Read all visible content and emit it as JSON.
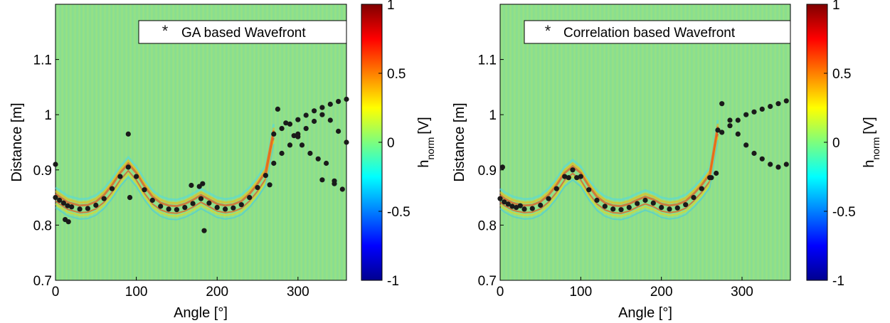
{
  "chart_data": [
    {
      "type": "scatter",
      "xlabel": "Angle [°]",
      "ylabel": "Distance [m]",
      "xlim": [
        0,
        360
      ],
      "ylim": [
        0.7,
        1.2
      ],
      "xticks": [
        "0",
        "100",
        "200",
        "300"
      ],
      "yticks": [
        "0.7",
        "0.8",
        "0.9",
        "1",
        "1.1"
      ],
      "background": "heatmap (green ~0 with red/blue fringes along wavefronts)",
      "grid": false,
      "legend_position": "top-right",
      "colorbar": {
        "label_base": "h",
        "label_sub": "norm",
        "label_unit": "[V]",
        "range": [
          -1,
          1
        ],
        "ticks": [
          "1",
          "0.5",
          "0",
          "-0.5",
          "-1"
        ],
        "colormap": "jet"
      },
      "series": [
        {
          "name": "GA based Wavefront",
          "marker": "*",
          "color": "#1a1a1a",
          "x": [
            0,
            5,
            10,
            15,
            20,
            30,
            40,
            50,
            60,
            70,
            80,
            90,
            100,
            110,
            120,
            130,
            140,
            150,
            160,
            170,
            180,
            190,
            200,
            210,
            220,
            230,
            240,
            250,
            260,
            270,
            280,
            290,
            300,
            310,
            320,
            330,
            340,
            350,
            360,
            270,
            280,
            290,
            300,
            310,
            320,
            330,
            340,
            350,
            360,
            275,
            285,
            295,
            305,
            315,
            325,
            335,
            345,
            355,
            0,
            12,
            16,
            90,
            92,
            168,
            178,
            182,
            184,
            265,
            300,
            330,
            345
          ],
          "y": [
            0.85,
            0.845,
            0.84,
            0.835,
            0.833,
            0.829,
            0.83,
            0.836,
            0.848,
            0.866,
            0.888,
            0.905,
            0.888,
            0.864,
            0.845,
            0.834,
            0.829,
            0.828,
            0.832,
            0.839,
            0.848,
            0.84,
            0.832,
            0.829,
            0.831,
            0.837,
            0.85,
            0.868,
            0.89,
            0.965,
            0.975,
            0.983,
            0.991,
            0.999,
            1.007,
            1.013,
            1.019,
            1.024,
            1.028,
            0.912,
            0.93,
            0.945,
            0.96,
            0.975,
            0.988,
            1.0,
            0.99,
            0.97,
            0.95,
            1.01,
            0.985,
            0.962,
            0.945,
            0.93,
            0.92,
            0.912,
            0.88,
            0.865,
            0.91,
            0.81,
            0.806,
            0.965,
            0.85,
            0.872,
            0.87,
            0.875,
            0.79,
            0.873,
            0.965,
            0.882,
            0.875
          ]
        }
      ]
    },
    {
      "type": "scatter",
      "xlabel": "Angle [°]",
      "ylabel": "Distance [m]",
      "xlim": [
        0,
        360
      ],
      "ylim": [
        0.7,
        1.2
      ],
      "xticks": [
        "0",
        "100",
        "200",
        "300"
      ],
      "yticks": [
        "0.7",
        "0.8",
        "0.9",
        "1",
        "1.1"
      ],
      "background": "heatmap (green ~0 with red/blue fringes along wavefronts)",
      "grid": false,
      "legend_position": "top-right",
      "colorbar": {
        "label_base": "h",
        "label_sub": "norm",
        "label_unit": "[V]",
        "range": [
          -1,
          1
        ],
        "ticks": [
          "1",
          "0.5",
          "0",
          "-0.5",
          "-1"
        ],
        "colormap": "jet"
      },
      "series": [
        {
          "name": "Correlation based Wavefront",
          "marker": "*",
          "color": "#1a1a1a",
          "x": [
            0,
            5,
            10,
            15,
            20,
            30,
            40,
            50,
            60,
            70,
            80,
            90,
            100,
            110,
            120,
            130,
            140,
            150,
            160,
            170,
            180,
            190,
            200,
            210,
            220,
            230,
            240,
            250,
            260,
            270,
            275,
            285,
            295,
            305,
            315,
            325,
            335,
            345,
            355,
            275,
            285,
            295,
            305,
            315,
            325,
            335,
            345,
            355,
            3,
            25,
            85,
            95,
            262,
            268
          ],
          "y": [
            0.848,
            0.842,
            0.838,
            0.834,
            0.832,
            0.829,
            0.83,
            0.836,
            0.848,
            0.866,
            0.888,
            0.9,
            0.888,
            0.864,
            0.845,
            0.834,
            0.829,
            0.828,
            0.832,
            0.839,
            0.845,
            0.84,
            0.832,
            0.829,
            0.831,
            0.837,
            0.85,
            0.866,
            0.886,
            0.972,
            1.02,
            0.99,
            0.965,
            0.945,
            0.93,
            0.92,
            0.91,
            0.905,
            0.91,
            0.968,
            0.98,
            0.99,
            1.0,
            1.005,
            1.01,
            1.015,
            1.02,
            1.025,
            0.905,
            0.835,
            0.886,
            0.886,
            0.886,
            0.894
          ]
        }
      ]
    }
  ]
}
